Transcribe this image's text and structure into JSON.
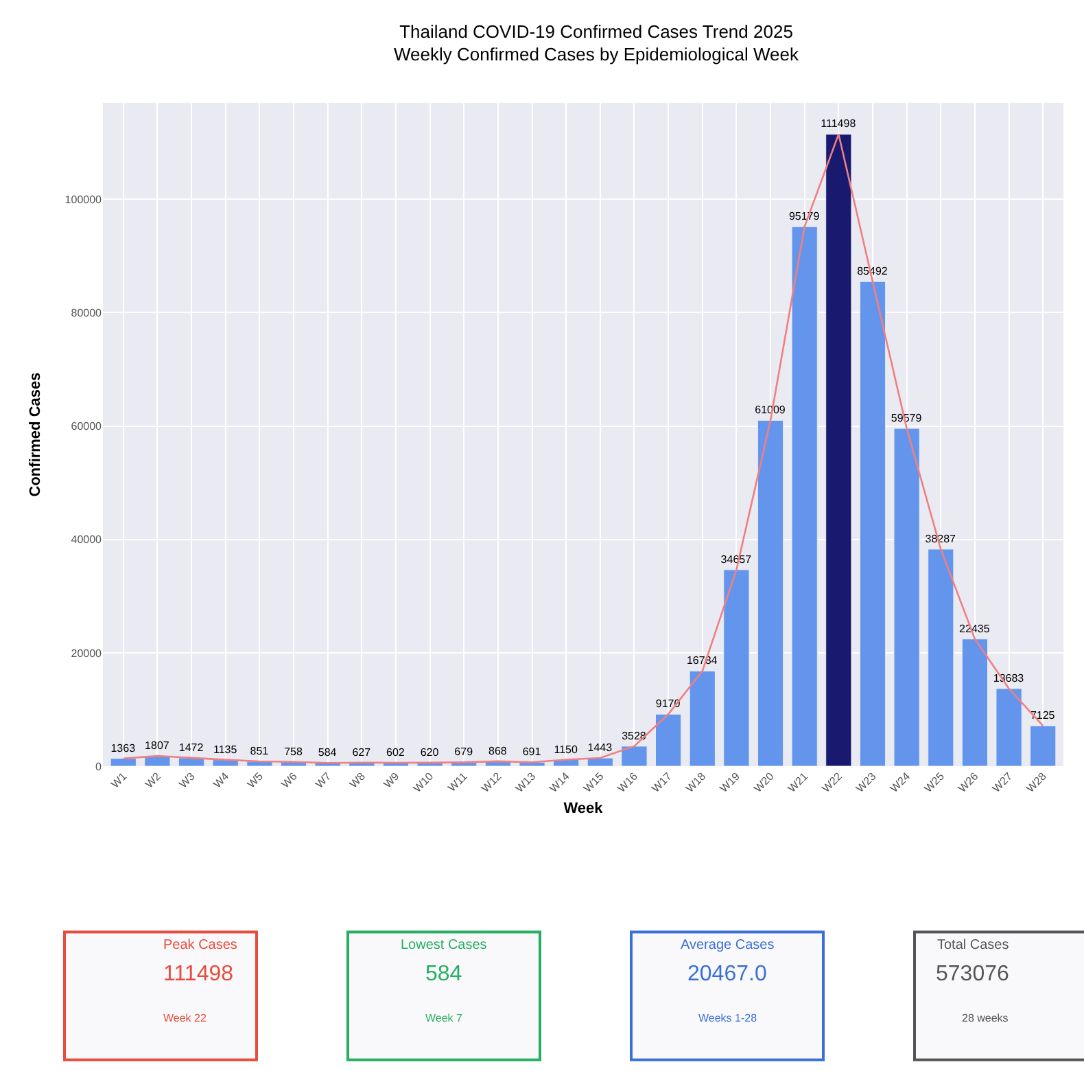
{
  "chart_data": [
    {
      "type": "bar",
      "title": "Thailand COVID-19 Confirmed Cases Trend 2025",
      "subtitle": "Weekly Confirmed Cases by Epidemiological Week",
      "xlabel": "Week",
      "ylabel": "Confirmed Cases",
      "categories": [
        "W1",
        "W2",
        "W3",
        "W4",
        "W5",
        "W6",
        "W7",
        "W8",
        "W9",
        "W10",
        "W11",
        "W12",
        "W13",
        "W14",
        "W15",
        "W16",
        "W17",
        "W18",
        "W19",
        "W20",
        "W21",
        "W22",
        "W23",
        "W24",
        "W25",
        "W26",
        "W27",
        "W28"
      ],
      "series": [
        {
          "colors": [
            "#6495ed",
            "#6495ed",
            "#6495ed",
            "#6495ed",
            "#6495ed",
            "#6495ed",
            "#6495ed",
            "#6495ed",
            "#6495ed",
            "#6495ed",
            "#6495ed",
            "#6495ed",
            "#6495ed",
            "#6495ed",
            "#6495ed",
            "#6495ed",
            "#6495ed",
            "#6495ed",
            "#6495ed",
            "#6495ed",
            "#6495ed",
            "#191970",
            "#6495ed",
            "#6495ed",
            "#6495ed",
            "#6495ed",
            "#6495ed",
            "#6495ed"
          ],
          "values": [
            1363,
            1807,
            1472,
            1135,
            851,
            758,
            584,
            627,
            602,
            620,
            679,
            868,
            691,
            1150,
            1443,
            3528,
            9170,
            16784,
            34657,
            61009,
            95179,
            111498,
            85492,
            59579,
            38287,
            22435,
            13683,
            7125
          ],
          "value_labels": [
            "1363",
            "1807",
            "1472",
            "1135",
            "851",
            "758",
            "584",
            "627",
            "602",
            "620",
            "679",
            "868",
            "691",
            "1150",
            "1443",
            "3528",
            "9170",
            "16784",
            "34657",
            "61009",
            "95179",
            "111498",
            "85492",
            "59579",
            "38287",
            "22435",
            "13683",
            "7125"
          ]
        },
        {
          "type": "line",
          "color": "#f08080",
          "values": [
            1363,
            1807,
            1472,
            1135,
            851,
            758,
            584,
            627,
            602,
            620,
            679,
            868,
            691,
            1150,
            1443,
            3528,
            9170,
            16784,
            34657,
            61009,
            95179,
            111498,
            85492,
            59579,
            38287,
            22435,
            13683,
            7125
          ]
        }
      ],
      "ylim": [
        0,
        117000
      ],
      "yticks": [
        0,
        20000,
        40000,
        60000,
        80000,
        100000
      ],
      "grid": true
    },
    {
      "type": "other",
      "colors": [
        "#e74c3c",
        "#27ae60",
        "#3b6fd8",
        "#555555"
      ],
      "annotations": [
        "Peak Cases",
        "111498",
        "Week 22",
        "Lowest Cases",
        "584",
        "Week 7",
        "Average Cases",
        "20467.0",
        "Weeks 1-28",
        "Total Cases",
        "573076",
        "28 weeks"
      ]
    }
  ]
}
